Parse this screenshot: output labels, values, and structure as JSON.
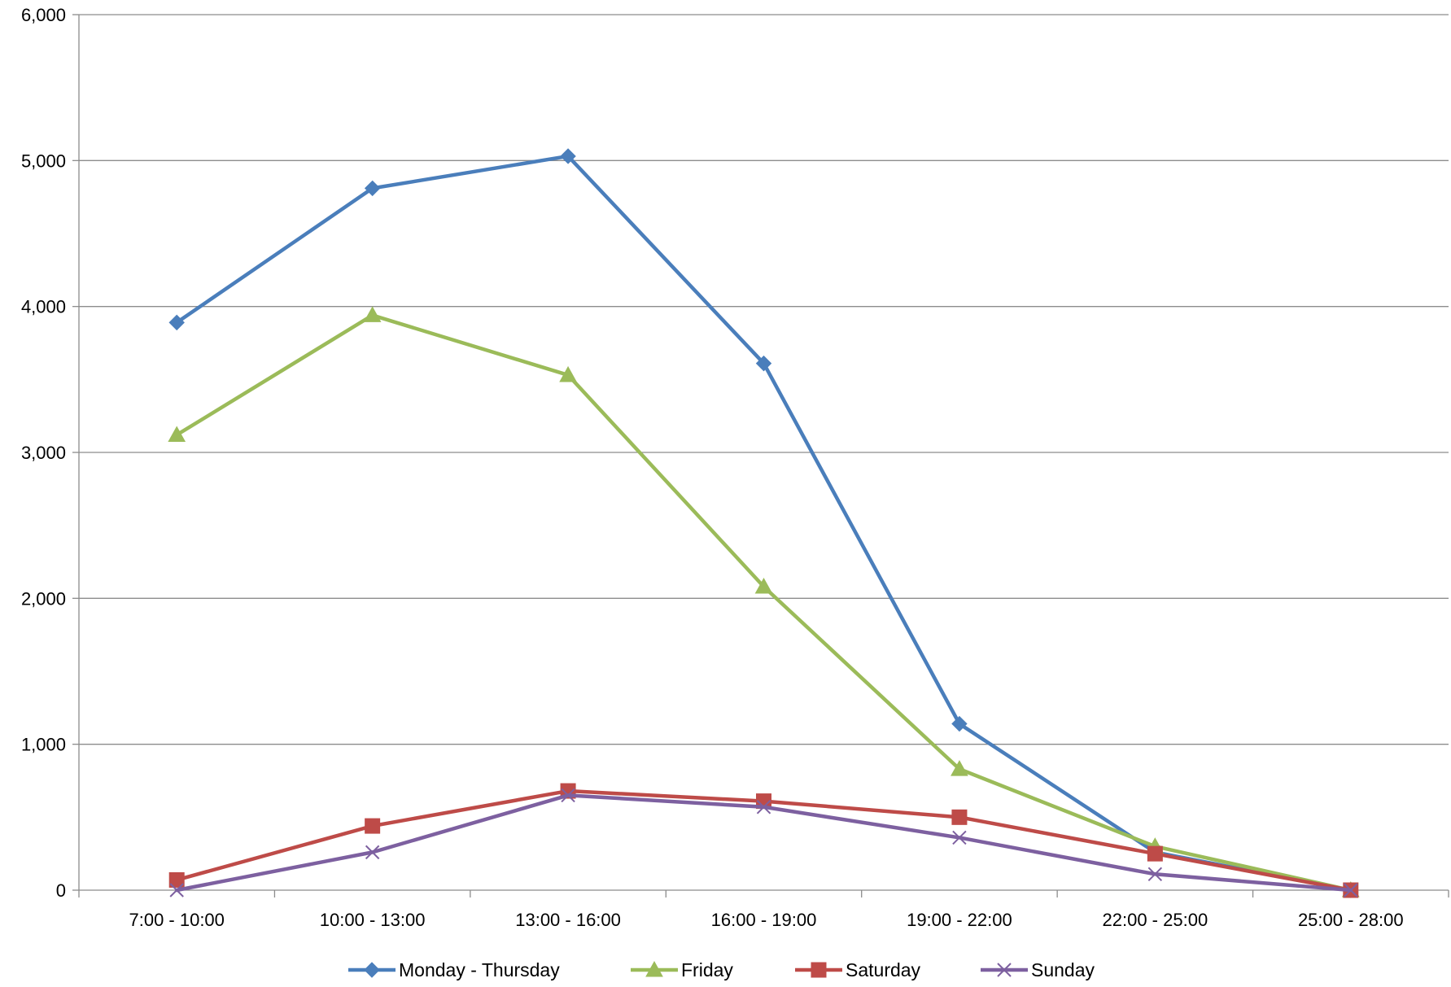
{
  "chart_data": {
    "type": "line",
    "title": "",
    "xlabel": "",
    "ylabel": "",
    "categories": [
      "7:00 - 10:00",
      "10:00 - 13:00",
      "13:00 - 16:00",
      "16:00 - 19:00",
      "19:00 - 22:00",
      "22:00 - 25:00",
      "25:00 - 28:00"
    ],
    "ylim": [
      0,
      6000
    ],
    "yticks": [
      0,
      1000,
      2000,
      3000,
      4000,
      5000,
      6000
    ],
    "ytick_labels": [
      "0",
      "1,000",
      "2,000",
      "3,000",
      "4,000",
      "5,000",
      "6,000"
    ],
    "grid": true,
    "legend_position": "bottom",
    "series": [
      {
        "name": "Monday - Thursday",
        "values": [
          3890,
          4810,
          5030,
          3610,
          1140,
          260,
          0
        ],
        "color": "#4a7ebb",
        "marker": "diamond"
      },
      {
        "name": "Friday",
        "values": [
          3120,
          3940,
          3530,
          2080,
          830,
          300,
          0
        ],
        "color": "#9bbb59",
        "marker": "triangle"
      },
      {
        "name": "Saturday",
        "values": [
          70,
          440,
          680,
          610,
          500,
          250,
          0
        ],
        "color": "#be4b48",
        "marker": "square"
      },
      {
        "name": "Sunday",
        "values": [
          0,
          260,
          650,
          570,
          360,
          110,
          0
        ],
        "color": "#7d60a0",
        "marker": "x"
      }
    ]
  }
}
